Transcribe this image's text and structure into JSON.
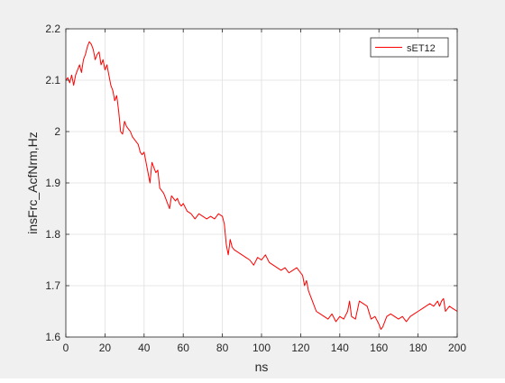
{
  "chart_data": {
    "type": "line",
    "xlabel": "ns",
    "ylabel": "insFrc_AcfNrm,Hz",
    "xlim": [
      0,
      200
    ],
    "ylim": [
      1.6,
      2.2
    ],
    "xticks": [
      0,
      20,
      40,
      60,
      80,
      100,
      120,
      140,
      160,
      180,
      200
    ],
    "yticks": [
      1.6,
      1.7,
      1.8,
      1.9,
      2.0,
      2.1,
      2.2
    ],
    "xtick_labels": [
      "0",
      "20",
      "40",
      "60",
      "80",
      "100",
      "120",
      "140",
      "160",
      "180",
      "200"
    ],
    "ytick_labels": [
      "1.6",
      "1.7",
      "1.8",
      "1.9",
      "2",
      "2.1",
      "2.2"
    ],
    "grid": true,
    "legend_position": "top-right",
    "series": [
      {
        "name": "sET12",
        "color": "#ff0000",
        "x": [
          0,
          1,
          2,
          3,
          4,
          5,
          6,
          7,
          8,
          9,
          10,
          11,
          12,
          13,
          14,
          15,
          16,
          17,
          18,
          19,
          20,
          21,
          22,
          23,
          24,
          25,
          26,
          27,
          28,
          29,
          30,
          31,
          32,
          33,
          34,
          35,
          36,
          37,
          38,
          39,
          40,
          41,
          42,
          43,
          44,
          45,
          46,
          47,
          48,
          49,
          50,
          51,
          52,
          53,
          54,
          55,
          56,
          57,
          58,
          59,
          60,
          62,
          64,
          66,
          68,
          70,
          72,
          74,
          76,
          78,
          80,
          81,
          82,
          83,
          84,
          85,
          86,
          88,
          90,
          92,
          94,
          96,
          98,
          100,
          102,
          104,
          106,
          108,
          110,
          112,
          114,
          116,
          118,
          120,
          121,
          122,
          123,
          124,
          125,
          126,
          128,
          130,
          132,
          134,
          136,
          138,
          140,
          142,
          144,
          145,
          146,
          148,
          150,
          152,
          154,
          156,
          158,
          160,
          161,
          162,
          164,
          166,
          168,
          170,
          172,
          174,
          176,
          178,
          180,
          182,
          184,
          186,
          188,
          190,
          191,
          192,
          193,
          194,
          196,
          198,
          200
        ],
        "y": [
          2.1,
          2.105,
          2.095,
          2.11,
          2.09,
          2.11,
          2.12,
          2.13,
          2.115,
          2.14,
          2.15,
          2.165,
          2.175,
          2.17,
          2.16,
          2.14,
          2.15,
          2.155,
          2.13,
          2.14,
          2.12,
          2.13,
          2.11,
          2.09,
          2.08,
          2.06,
          2.07,
          2.04,
          2.0,
          1.995,
          2.02,
          2.01,
          2.005,
          2.0,
          1.99,
          1.985,
          1.98,
          1.975,
          1.96,
          1.955,
          1.96,
          1.94,
          1.92,
          1.9,
          1.94,
          1.93,
          1.92,
          1.925,
          1.89,
          1.885,
          1.88,
          1.87,
          1.86,
          1.85,
          1.875,
          1.87,
          1.865,
          1.87,
          1.86,
          1.855,
          1.86,
          1.845,
          1.84,
          1.83,
          1.84,
          1.835,
          1.83,
          1.835,
          1.83,
          1.84,
          1.835,
          1.82,
          1.78,
          1.76,
          1.79,
          1.775,
          1.77,
          1.765,
          1.76,
          1.755,
          1.75,
          1.74,
          1.755,
          1.75,
          1.76,
          1.745,
          1.74,
          1.735,
          1.73,
          1.735,
          1.725,
          1.73,
          1.735,
          1.725,
          1.72,
          1.7,
          1.71,
          1.69,
          1.68,
          1.67,
          1.65,
          1.645,
          1.64,
          1.635,
          1.645,
          1.63,
          1.64,
          1.635,
          1.65,
          1.67,
          1.64,
          1.635,
          1.67,
          1.665,
          1.66,
          1.635,
          1.64,
          1.625,
          1.615,
          1.62,
          1.64,
          1.645,
          1.64,
          1.635,
          1.64,
          1.63,
          1.64,
          1.645,
          1.65,
          1.655,
          1.66,
          1.665,
          1.66,
          1.67,
          1.66,
          1.67,
          1.675,
          1.65,
          1.66,
          1.655,
          1.65
        ]
      }
    ]
  }
}
